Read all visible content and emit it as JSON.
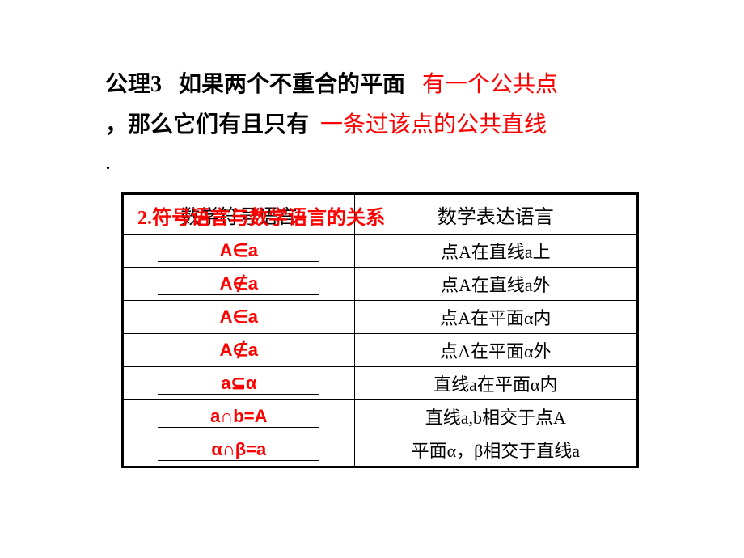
{
  "axiom": {
    "label": "公理3",
    "text1": "如果两个不重合的平面",
    "red1": "有一个公共点",
    "text2": "，那么它们有且只有",
    "red2": "一条过该点的公共直线",
    "dot": "."
  },
  "subtitle": "2.符号语言与数学语言的关系",
  "table": {
    "header": {
      "col1": "数学符号语言",
      "col2": "数学表达语言"
    },
    "rows": [
      {
        "sym": "A∈a",
        "desc": "点A在直线a上"
      },
      {
        "sym": "A∉a",
        "desc": "点A在直线a外"
      },
      {
        "sym": "A∈a",
        "desc": "点A在平面α内"
      },
      {
        "sym": "A∉a",
        "desc": "点A在平面α外"
      },
      {
        "sym": "a⊆α",
        "desc": "直线a在平面α内"
      },
      {
        "sym": "a∩b=A",
        "desc": "直线a,b相交于点A"
      },
      {
        "sym": "α∩β=a",
        "desc": "平面α，β相交于直线a"
      }
    ]
  },
  "colors": {
    "red": "#ff0000",
    "black": "#000000",
    "bg": "#ffffff"
  }
}
